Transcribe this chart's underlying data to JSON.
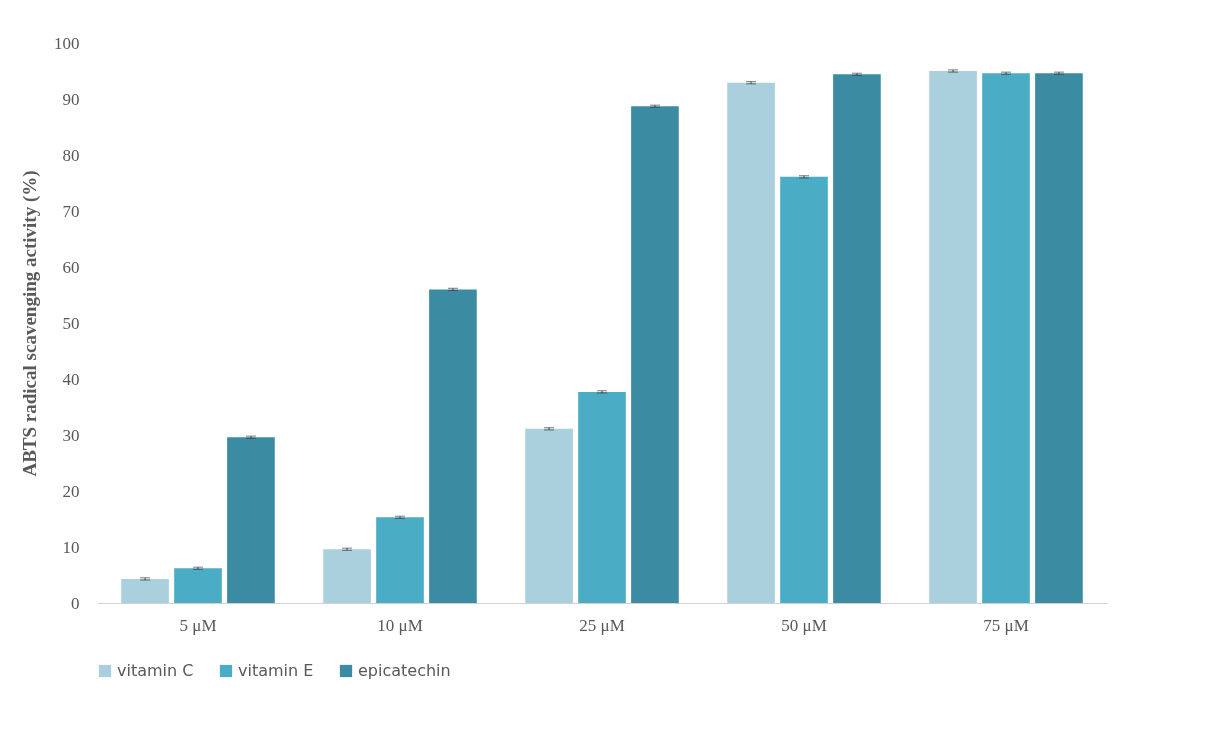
{
  "chart_data": {
    "type": "bar",
    "ylabel": "ABTS radical scavenging activity (%)",
    "categories": [
      "5 μM",
      "10 μM",
      "25 μM",
      "50 μM",
      "75 μM"
    ],
    "series": [
      {
        "name": "vitamin C",
        "color": "#a9d0dc",
        "values": [
          4.3,
          9.6,
          31.1,
          92.9,
          95.0
        ],
        "errors": [
          0.2,
          0.2,
          0.2,
          0.2,
          0.2
        ]
      },
      {
        "name": "vitamin E",
        "color": "#4bacc6",
        "values": [
          6.2,
          15.3,
          37.7,
          76.1,
          94.6
        ],
        "errors": [
          0.2,
          0.2,
          0.2,
          0.2,
          0.2
        ]
      },
      {
        "name": "epicatechin",
        "color": "#3b8ca3",
        "values": [
          29.6,
          56.0,
          88.7,
          94.4,
          94.6
        ],
        "errors": [
          0.2,
          0.2,
          0.2,
          0.2,
          0.2
        ]
      }
    ],
    "ylim": [
      0,
      100
    ],
    "yticks": [
      0,
      10,
      20,
      30,
      40,
      50,
      60,
      70,
      80,
      90,
      100
    ],
    "grid": false,
    "legend": "bottom"
  }
}
